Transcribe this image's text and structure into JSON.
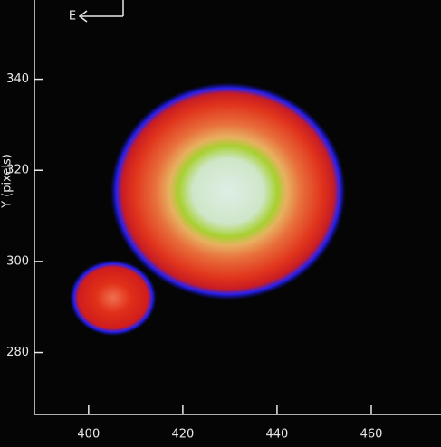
{
  "chart_data": {
    "type": "scatter",
    "compass": "E",
    "ylabel": "Y (pixels)",
    "x": [
      429.6,
      405.2
    ],
    "values": [
      315.4,
      292
    ],
    "xlim": [
      388.5,
      474.8
    ],
    "ylim": [
      266.4,
      357.4
    ],
    "xticks": [
      400,
      420,
      440,
      460
    ],
    "yticks": [
      280,
      300,
      320,
      340
    ]
  }
}
